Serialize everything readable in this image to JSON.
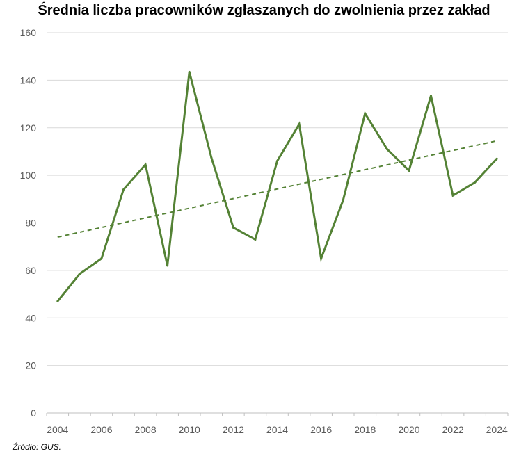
{
  "chart_data": {
    "type": "line",
    "title": "Średnia liczba pracowników zgłaszanych do zwolnienia przez zakład",
    "source": "Źródło: GUS.",
    "xlabel": "",
    "ylabel": "",
    "x": [
      2004,
      2005,
      2006,
      2007,
      2008,
      2009,
      2010,
      2011,
      2012,
      2013,
      2014,
      2015,
      2016,
      2017,
      2018,
      2019,
      2020,
      2021,
      2022,
      2023,
      2024
    ],
    "x_tick_labels": [
      "2004",
      "2006",
      "2008",
      "2010",
      "2012",
      "2014",
      "2016",
      "2018",
      "2020",
      "2022",
      "2024"
    ],
    "y_tick_labels": [
      "0",
      "20",
      "40",
      "60",
      "80",
      "100",
      "120",
      "140",
      "160"
    ],
    "ylim": [
      0,
      160
    ],
    "grid": true,
    "series": [
      {
        "name": "",
        "color": "#548235",
        "values": [
          47,
          58.5,
          65,
          94,
          104.5,
          62,
          143.5,
          107.5,
          78,
          73,
          106,
          121.5,
          65,
          89.5,
          126,
          111,
          102,
          133.5,
          91.5,
          97,
          107
        ]
      }
    ],
    "trendline": {
      "type": "linear",
      "color": "#548235",
      "style": "dashed",
      "start": [
        2004,
        74
      ],
      "end": [
        2024,
        114.5
      ]
    }
  }
}
